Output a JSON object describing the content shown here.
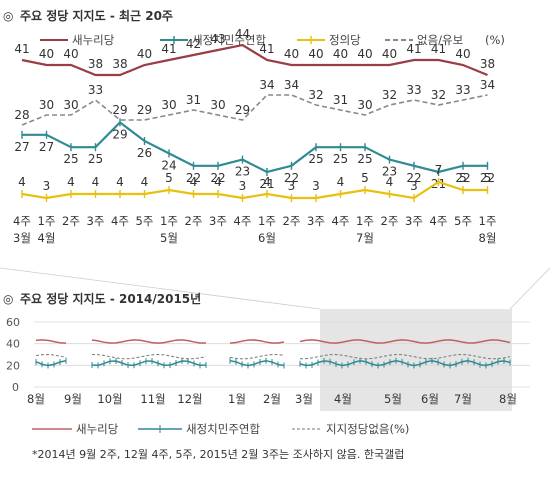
{
  "chart_data": [
    {
      "type": "line",
      "title": "주요 정당 지지도 - 최근 20주",
      "title_icon": "circle-bullet-icon",
      "legend_position": "top",
      "legend_suffix": "(%)",
      "categories": [
        [
          "4주",
          "3월"
        ],
        [
          "1주",
          "4월"
        ],
        [
          "2주",
          ""
        ],
        [
          "3주",
          ""
        ],
        [
          "4주",
          ""
        ],
        [
          "5주",
          ""
        ],
        [
          "1주",
          "5월"
        ],
        [
          "2주",
          ""
        ],
        [
          "3주",
          ""
        ],
        [
          "4주",
          ""
        ],
        [
          "1주",
          "6월"
        ],
        [
          "2주",
          ""
        ],
        [
          "3주",
          ""
        ],
        [
          "4주",
          ""
        ],
        [
          "1주",
          "7월"
        ],
        [
          "2주",
          ""
        ],
        [
          "3주",
          ""
        ],
        [
          "4주",
          ""
        ],
        [
          "5주",
          ""
        ],
        [
          "1주",
          "8월"
        ]
      ],
      "series": [
        {
          "name": "새누리당",
          "color": "#9b3d45",
          "style": "solid",
          "values": [
            41,
            40,
            40,
            38,
            38,
            40,
            41,
            42,
            43,
            44,
            41,
            40,
            40,
            40,
            40,
            40,
            41,
            41,
            40,
            38
          ]
        },
        {
          "name": "새정치민주연합",
          "color": "#2f8a92",
          "style": "solid-marker",
          "values": [
            27,
            27,
            25,
            25,
            29,
            26,
            24,
            22,
            22,
            23,
            21,
            22,
            25,
            25,
            25,
            23,
            22,
            21,
            22,
            22
          ]
        },
        {
          "name": "정의당",
          "color": "#e8c010",
          "style": "solid-marker",
          "values": [
            4,
            3,
            4,
            4,
            4,
            4,
            5,
            4,
            4,
            3,
            4,
            3,
            3,
            4,
            5,
            4,
            3,
            7,
            5,
            5
          ]
        },
        {
          "name": "없음/유보",
          "color": "#888888",
          "style": "dashed",
          "values": [
            28,
            30,
            30,
            33,
            29,
            29,
            30,
            31,
            30,
            29,
            34,
            34,
            32,
            31,
            30,
            32,
            33,
            32,
            33,
            34
          ]
        }
      ]
    },
    {
      "type": "line",
      "title": "주요 정당 지지도 - 2014/2015년",
      "title_icon": "circle-bullet-icon",
      "ylim": [
        0,
        60
      ],
      "y_ticks": [
        20,
        40,
        60
      ],
      "y_tick_label_zero": "0",
      "grid": true,
      "highlight_last_months": true,
      "months": [
        "8월",
        "9월",
        "10월",
        "11월",
        "12월",
        "1월",
        "2월",
        "3월",
        "4월",
        "5월",
        "6월",
        "7월",
        "8월"
      ],
      "series": [
        {
          "name": "새누리당",
          "color": "#c06060"
        },
        {
          "name": "새정치민주연합",
          "color": "#2f8a92"
        },
        {
          "name": "지지정당없음(%)",
          "color": "#777777"
        }
      ],
      "note": "*2014년 9월 2주, 12월 4주, 5주, 2015년 2월 3주는 조사하지 않음. 한국갤럽"
    }
  ]
}
